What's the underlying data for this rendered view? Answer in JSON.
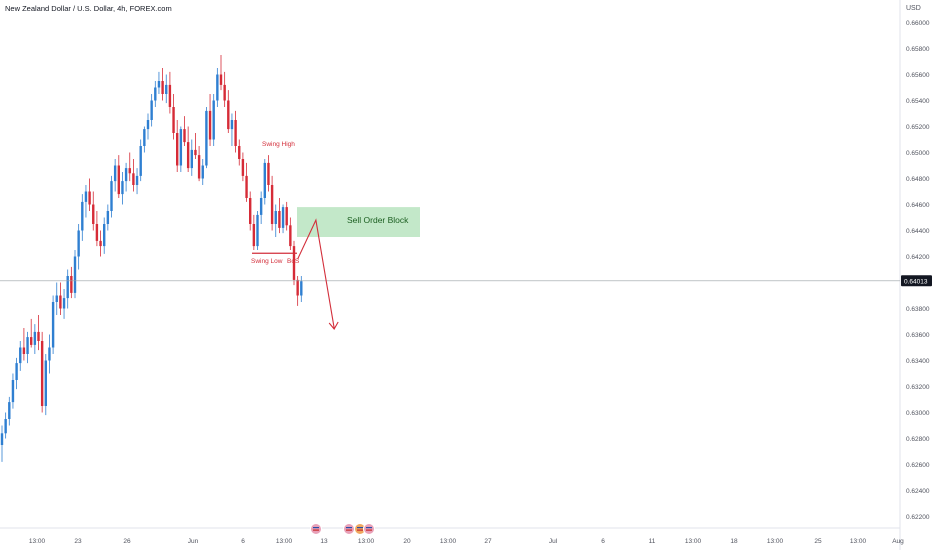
{
  "header": {
    "symbol_title": "New Zealand Dollar / U.S. Dollar, 4h, FOREX.com",
    "currency": "USD"
  },
  "colors": {
    "up": "#2f7fd1",
    "down": "#d62b37",
    "annotation": "#d32f3b",
    "order_block_fill": "#b9e4bf",
    "price_line": "#9aa0a6",
    "price_tag_bg": "#131722",
    "axis_text": "#50535e"
  },
  "chart_data": {
    "type": "candlestick",
    "title": "New Zealand Dollar / U.S. Dollar, 4h, FOREX.com",
    "currency": "USD",
    "ylim": [
      0.6215,
      0.6615
    ],
    "y_ticks": [
      "0.66000",
      "0.65800",
      "0.65600",
      "0.65400",
      "0.65200",
      "0.65000",
      "0.64800",
      "0.64600",
      "0.64400",
      "0.64200",
      "0.64013",
      "0.63800",
      "0.63600",
      "0.63400",
      "0.63200",
      "0.63000",
      "0.62800",
      "0.62600",
      "0.62400",
      "0.62200"
    ],
    "current_price": "0.64013",
    "x_ticks": [
      "13:00",
      "23",
      "26",
      "Jun",
      "6",
      "13:00",
      "13",
      "13:00",
      "20",
      "13:00",
      "27",
      "Jul",
      "6",
      "11",
      "13:00",
      "18",
      "13:00",
      "25",
      "13:00",
      "Aug"
    ],
    "candles": [
      [
        0.6275,
        0.629,
        0.6262,
        0.6284
      ],
      [
        0.6284,
        0.63,
        0.628,
        0.6295
      ],
      [
        0.6295,
        0.6312,
        0.629,
        0.6308
      ],
      [
        0.6308,
        0.633,
        0.6303,
        0.6325
      ],
      [
        0.6325,
        0.6342,
        0.6318,
        0.6338
      ],
      [
        0.6338,
        0.6355,
        0.6332,
        0.635
      ],
      [
        0.635,
        0.6365,
        0.634,
        0.6345
      ],
      [
        0.6345,
        0.6362,
        0.6338,
        0.6358
      ],
      [
        0.6358,
        0.6372,
        0.635,
        0.6352
      ],
      [
        0.6352,
        0.6368,
        0.6345,
        0.6362
      ],
      [
        0.6362,
        0.6375,
        0.6348,
        0.6355
      ],
      [
        0.6355,
        0.6362,
        0.63,
        0.6305
      ],
      [
        0.6305,
        0.6345,
        0.6298,
        0.634
      ],
      [
        0.634,
        0.636,
        0.633,
        0.635
      ],
      [
        0.635,
        0.639,
        0.6345,
        0.6385
      ],
      [
        0.6385,
        0.64,
        0.6375,
        0.639
      ],
      [
        0.639,
        0.64,
        0.6375,
        0.638
      ],
      [
        0.638,
        0.6395,
        0.6372,
        0.6388
      ],
      [
        0.6388,
        0.641,
        0.638,
        0.6405
      ],
      [
        0.6405,
        0.6412,
        0.6388,
        0.6392
      ],
      [
        0.6392,
        0.6425,
        0.6388,
        0.642
      ],
      [
        0.642,
        0.6445,
        0.641,
        0.644
      ],
      [
        0.644,
        0.6468,
        0.6432,
        0.6462
      ],
      [
        0.6462,
        0.6475,
        0.645,
        0.647
      ],
      [
        0.647,
        0.648,
        0.6455,
        0.646
      ],
      [
        0.646,
        0.647,
        0.644,
        0.6445
      ],
      [
        0.6445,
        0.6455,
        0.6428,
        0.6432
      ],
      [
        0.6432,
        0.644,
        0.642,
        0.6428
      ],
      [
        0.6428,
        0.645,
        0.6422,
        0.6445
      ],
      [
        0.6445,
        0.646,
        0.644,
        0.6455
      ],
      [
        0.6455,
        0.6482,
        0.645,
        0.6478
      ],
      [
        0.6478,
        0.6495,
        0.647,
        0.649
      ],
      [
        0.649,
        0.6498,
        0.6465,
        0.6468
      ],
      [
        0.6468,
        0.6485,
        0.646,
        0.6478
      ],
      [
        0.6478,
        0.6492,
        0.647,
        0.6488
      ],
      [
        0.6488,
        0.65,
        0.6478,
        0.6484
      ],
      [
        0.6484,
        0.6495,
        0.647,
        0.6475
      ],
      [
        0.6475,
        0.6488,
        0.6468,
        0.6482
      ],
      [
        0.6482,
        0.651,
        0.6478,
        0.6505
      ],
      [
        0.6505,
        0.652,
        0.65,
        0.6518
      ],
      [
        0.6518,
        0.653,
        0.651,
        0.6525
      ],
      [
        0.6525,
        0.6545,
        0.652,
        0.654
      ],
      [
        0.654,
        0.6555,
        0.6535,
        0.655
      ],
      [
        0.655,
        0.6562,
        0.6545,
        0.6555
      ],
      [
        0.6555,
        0.6565,
        0.654,
        0.6545
      ],
      [
        0.6545,
        0.656,
        0.6538,
        0.6552
      ],
      [
        0.6552,
        0.6562,
        0.653,
        0.6535
      ],
      [
        0.6535,
        0.6545,
        0.651,
        0.6515
      ],
      [
        0.6515,
        0.6525,
        0.6485,
        0.649
      ],
      [
        0.649,
        0.652,
        0.6485,
        0.6518
      ],
      [
        0.6518,
        0.6528,
        0.6505,
        0.6508
      ],
      [
        0.6508,
        0.652,
        0.6485,
        0.6488
      ],
      [
        0.6488,
        0.651,
        0.6482,
        0.6502
      ],
      [
        0.6502,
        0.6515,
        0.6495,
        0.6498
      ],
      [
        0.6498,
        0.6505,
        0.6478,
        0.648
      ],
      [
        0.648,
        0.6495,
        0.6475,
        0.649
      ],
      [
        0.649,
        0.6535,
        0.6488,
        0.6532
      ],
      [
        0.6532,
        0.6545,
        0.6505,
        0.651
      ],
      [
        0.651,
        0.6545,
        0.6505,
        0.654
      ],
      [
        0.654,
        0.6565,
        0.6535,
        0.656
      ],
      [
        0.656,
        0.6575,
        0.6548,
        0.6552
      ],
      [
        0.6552,
        0.6562,
        0.6535,
        0.654
      ],
      [
        0.654,
        0.6548,
        0.6515,
        0.6518
      ],
      [
        0.6518,
        0.653,
        0.6505,
        0.6525
      ],
      [
        0.6525,
        0.6532,
        0.65,
        0.6505
      ],
      [
        0.6505,
        0.651,
        0.649,
        0.6495
      ],
      [
        0.6495,
        0.65,
        0.6478,
        0.6482
      ],
      [
        0.6482,
        0.6492,
        0.6462,
        0.6465
      ],
      [
        0.6465,
        0.647,
        0.644,
        0.6445
      ],
      [
        0.6445,
        0.6452,
        0.6425,
        0.6428
      ],
      [
        0.6428,
        0.6455,
        0.6425,
        0.6452
      ],
      [
        0.6452,
        0.647,
        0.6445,
        0.6465
      ],
      [
        0.6465,
        0.6495,
        0.646,
        0.6492
      ],
      [
        0.6492,
        0.6498,
        0.647,
        0.6475
      ],
      [
        0.6475,
        0.6482,
        0.644,
        0.6445
      ],
      [
        0.6445,
        0.646,
        0.6435,
        0.6455
      ],
      [
        0.6455,
        0.6465,
        0.6438,
        0.6442
      ],
      [
        0.6442,
        0.646,
        0.6438,
        0.6458
      ],
      [
        0.6458,
        0.6462,
        0.644,
        0.6444
      ],
      [
        0.6444,
        0.645,
        0.6425,
        0.6428
      ],
      [
        0.6428,
        0.6432,
        0.6398,
        0.6402
      ],
      [
        0.6402,
        0.6405,
        0.6382,
        0.639
      ],
      [
        0.639,
        0.6405,
        0.6385,
        0.6401
      ]
    ],
    "annotations": {
      "swing_high": "Swing High",
      "swing_low": "Swing Low",
      "bos": "BoS",
      "order_block": "Sell Order Block",
      "order_block_range": [
        0.6435,
        0.6458
      ],
      "arrow_path": [
        [
          0.6418,
          81
        ],
        [
          0.6448,
          86
        ],
        [
          0.6365,
          91
        ]
      ]
    },
    "grid": false,
    "legend": "none"
  }
}
